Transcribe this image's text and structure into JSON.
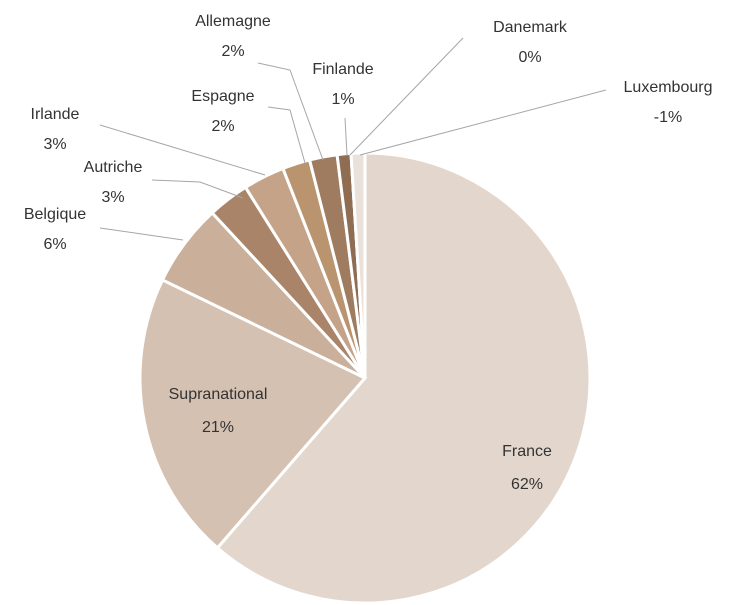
{
  "chart_data": {
    "type": "pie",
    "categories": [
      "France",
      "Supranational",
      "Belgique",
      "Autriche",
      "Irlande",
      "Espagne",
      "Allemagne",
      "Finlande",
      "Danemark",
      "Luxembourg"
    ],
    "values": [
      62,
      21,
      6,
      3,
      3,
      2,
      2,
      1,
      0,
      -1
    ],
    "value_labels": [
      "62%",
      "21%",
      "6%",
      "3%",
      "3%",
      "2%",
      "2%",
      "1%",
      "0%",
      "-1%"
    ],
    "colors": [
      "#e3d7cd",
      "#d5c1b1",
      "#cab09b",
      "#a98468",
      "#c4a388",
      "#b9946f",
      "#9f7c60",
      "#8e6d53",
      "#d9d0c8",
      "#e9e1da"
    ]
  }
}
